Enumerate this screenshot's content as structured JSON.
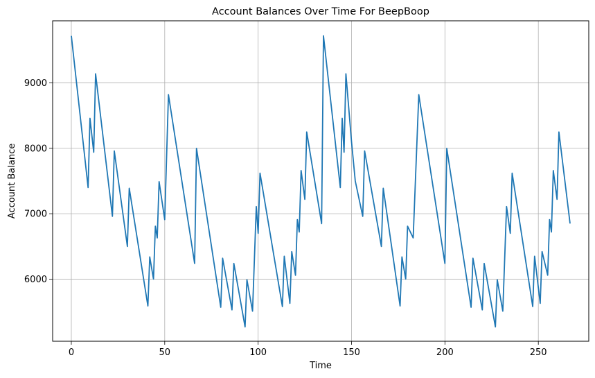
{
  "chart_data": {
    "type": "line",
    "title": "Account Balances Over Time For BeepBoop",
    "xlabel": "Time",
    "ylabel": "Account Balance",
    "xlim": [
      -10,
      277
    ],
    "ylim": [
      5050,
      9950
    ],
    "xticks": [
      0,
      50,
      100,
      150,
      200,
      250
    ],
    "yticks": [
      6000,
      7000,
      8000,
      9000
    ],
    "grid": true,
    "line_color": "#1f77b4",
    "series": [
      {
        "x": [
          0,
          9,
          10,
          12,
          13,
          22,
          23,
          30,
          31,
          41,
          42,
          44,
          45,
          46,
          47,
          50,
          52,
          66,
          67,
          80,
          81,
          86,
          87,
          93,
          94,
          97,
          99,
          100,
          101,
          113,
          114,
          117,
          118,
          120,
          121,
          122,
          123,
          125,
          126,
          134,
          135,
          144,
          145,
          146,
          147,
          150,
          152,
          156,
          157,
          166,
          167,
          176,
          177,
          179,
          180,
          183,
          186,
          200,
          201,
          214,
          215,
          220,
          221,
          227,
          228,
          231,
          233,
          235,
          236,
          247,
          248,
          251,
          252,
          255,
          256,
          257,
          258,
          260,
          261,
          267
        ],
        "y": [
          9720,
          7400,
          8460,
          7940,
          9140,
          6960,
          7960,
          6500,
          7390,
          5590,
          6340,
          6000,
          6810,
          6630,
          7490,
          6910,
          8820,
          6240,
          8000,
          5570,
          6320,
          5530,
          6240,
          5270,
          5990,
          5510,
          7110,
          6700,
          7620,
          5580,
          6350,
          5630,
          6420,
          6060,
          6910,
          6720,
          7660,
          7220,
          8250,
          6850,
          9720,
          7400,
          8460,
          7940,
          9140,
          8100,
          7500,
          6960,
          7960,
          6500,
          7390,
          5590,
          6340,
          6000,
          6810,
          6630,
          8820,
          6240,
          8000,
          5570,
          6320,
          5530,
          6240,
          5270,
          5990,
          5510,
          7110,
          6700,
          7620,
          5580,
          6350,
          5630,
          6420,
          6060,
          6910,
          6720,
          7660,
          7220,
          8250,
          6850
        ]
      }
    ]
  }
}
